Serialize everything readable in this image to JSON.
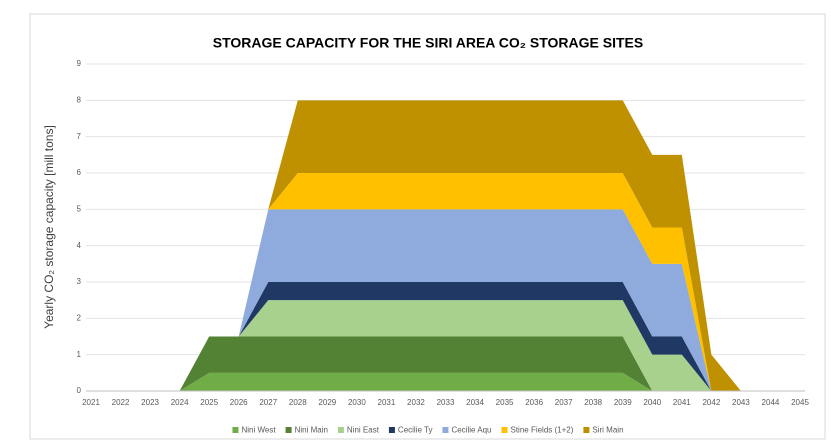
{
  "chart_data": {
    "type": "stacked_area",
    "title": "STORAGE CAPACITY FOR THE SIRI AREA CO₂ STORAGE SITES",
    "y_label": "Yearly CO₂ storage capacity [mill tons]",
    "categories": [
      "2021",
      "2022",
      "2023",
      "2024",
      "2025",
      "2026",
      "2027",
      "2028",
      "2029",
      "2030",
      "2031",
      "2032",
      "2033",
      "2034",
      "2035",
      "2036",
      "2037",
      "2038",
      "2039",
      "2040",
      "2041",
      "2042",
      "2043",
      "2044",
      "2045"
    ],
    "series": [
      {
        "name": "Nini West",
        "color": "#70ad47",
        "values": [
          0,
          0,
          0,
          0,
          0.5,
          0.5,
          0.5,
          0.5,
          0.5,
          0.5,
          0.5,
          0.5,
          0.5,
          0.5,
          0.5,
          0.5,
          0.5,
          0.5,
          0.5,
          0,
          0,
          0,
          0,
          0,
          0
        ]
      },
      {
        "name": "Nini Main",
        "color": "#548235",
        "values": [
          0,
          0,
          0,
          0,
          1,
          1,
          1,
          1,
          1,
          1,
          1,
          1,
          1,
          1,
          1,
          1,
          1,
          1,
          1,
          0,
          0,
          0,
          0,
          0,
          0
        ]
      },
      {
        "name": "Nini East",
        "color": "#a9d18e",
        "values": [
          0,
          0,
          0,
          0,
          0,
          0,
          1,
          1,
          1,
          1,
          1,
          1,
          1,
          1,
          1,
          1,
          1,
          1,
          1,
          1,
          1,
          0,
          0,
          0,
          0
        ]
      },
      {
        "name": "Cecilie Ty",
        "color": "#203864",
        "values": [
          0,
          0,
          0,
          0,
          0,
          0,
          0.5,
          0.5,
          0.5,
          0.5,
          0.5,
          0.5,
          0.5,
          0.5,
          0.5,
          0.5,
          0.5,
          0.5,
          0.5,
          0.5,
          0.5,
          0,
          0,
          0,
          0
        ]
      },
      {
        "name": "Cecilie Aqu",
        "color": "#8faadc",
        "values": [
          0,
          0,
          0,
          0,
          0,
          0,
          2,
          2,
          2,
          2,
          2,
          2,
          2,
          2,
          2,
          2,
          2,
          2,
          2,
          2,
          2,
          0,
          0,
          0,
          0
        ]
      },
      {
        "name": "Stine Fields (1+2)",
        "color": "#ffc000",
        "values": [
          0,
          0,
          0,
          0,
          0,
          0,
          0,
          1,
          1,
          1,
          1,
          1,
          1,
          1,
          1,
          1,
          1,
          1,
          1,
          1,
          1,
          0,
          0,
          0,
          0
        ]
      },
      {
        "name": "Siri Main",
        "color": "#bf9000",
        "values": [
          0,
          0,
          0,
          0,
          0,
          0,
          0,
          2,
          2,
          2,
          2,
          2,
          2,
          2,
          2,
          2,
          2,
          2,
          2,
          2,
          2,
          1,
          0,
          0,
          0
        ]
      }
    ],
    "ylim": [
      0,
      9
    ],
    "yticks": [
      0,
      1,
      2,
      3,
      4,
      5,
      6,
      7,
      8,
      9
    ],
    "grid": true,
    "legend": "bottom"
  }
}
